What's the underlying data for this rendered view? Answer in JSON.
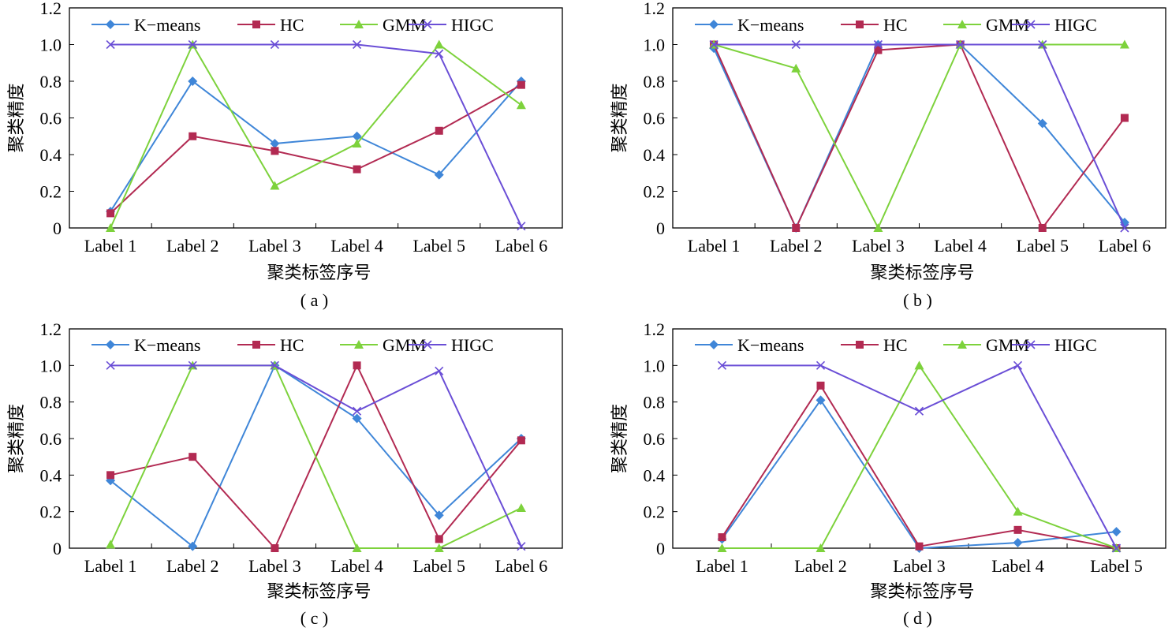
{
  "chart_data": [
    {
      "id": "a",
      "type": "line",
      "caption": "( a )",
      "xlabel": "聚类标签序号",
      "ylabel": "聚类精度",
      "categories": [
        "Label 1",
        "Label 2",
        "Label 3",
        "Label 4",
        "Label 5",
        "Label 6"
      ],
      "ylim": [
        0,
        1.2
      ],
      "yticks": [
        "0",
        "0.2",
        "0.4",
        "0.6",
        "0.8",
        "1.0",
        "1.2"
      ],
      "legend": "top",
      "series": [
        {
          "name": "K−means",
          "color": "#3f86d8",
          "marker": "diamond",
          "values": [
            0.09,
            0.8,
            0.46,
            0.5,
            0.29,
            0.8
          ]
        },
        {
          "name": "HC",
          "color": "#b22a52",
          "marker": "square",
          "values": [
            0.08,
            0.5,
            0.42,
            0.32,
            0.53,
            0.78
          ]
        },
        {
          "name": "GMM",
          "color": "#7dd23c",
          "marker": "triangle",
          "values": [
            0.0,
            1.0,
            0.23,
            0.46,
            1.0,
            0.67
          ]
        },
        {
          "name": "HIGC",
          "color": "#6a4ed6",
          "marker": "x",
          "values": [
            1.0,
            1.0,
            1.0,
            1.0,
            0.95,
            0.01
          ]
        }
      ]
    },
    {
      "id": "b",
      "type": "line",
      "caption": "( b )",
      "xlabel": "聚类标签序号",
      "ylabel": "聚类精度",
      "categories": [
        "Label 1",
        "Label 2",
        "Label 3",
        "Label 4",
        "Label 5",
        "Label 6"
      ],
      "ylim": [
        0,
        1.2
      ],
      "yticks": [
        "0",
        "0.2",
        "0.4",
        "0.6",
        "0.8",
        "1.0",
        "1.2"
      ],
      "legend": "top",
      "series": [
        {
          "name": "K−means",
          "color": "#3f86d8",
          "marker": "diamond",
          "values": [
            0.98,
            0.0,
            1.0,
            1.0,
            0.57,
            0.03
          ]
        },
        {
          "name": "HC",
          "color": "#b22a52",
          "marker": "square",
          "values": [
            1.0,
            0.0,
            0.97,
            1.0,
            0.0,
            0.6
          ]
        },
        {
          "name": "GMM",
          "color": "#7dd23c",
          "marker": "triangle",
          "values": [
            1.0,
            0.87,
            0.0,
            1.0,
            1.0,
            1.0
          ]
        },
        {
          "name": "HIGC",
          "color": "#6a4ed6",
          "marker": "x",
          "values": [
            1.0,
            1.0,
            1.0,
            1.0,
            1.0,
            0.0
          ]
        }
      ]
    },
    {
      "id": "c",
      "type": "line",
      "caption": "( c )",
      "xlabel": "聚类标签序号",
      "ylabel": "聚类精度",
      "categories": [
        "Label 1",
        "Label 2",
        "Label 3",
        "Label 4",
        "Label 5",
        "Label 6"
      ],
      "ylim": [
        0,
        1.2
      ],
      "yticks": [
        "0",
        "0.2",
        "0.4",
        "0.6",
        "0.8",
        "1.0",
        "1.2"
      ],
      "legend": "top",
      "series": [
        {
          "name": "K−means",
          "color": "#3f86d8",
          "marker": "diamond",
          "values": [
            0.37,
            0.01,
            1.0,
            0.71,
            0.18,
            0.6
          ]
        },
        {
          "name": "HC",
          "color": "#b22a52",
          "marker": "square",
          "values": [
            0.4,
            0.5,
            0.0,
            1.0,
            0.05,
            0.59
          ]
        },
        {
          "name": "GMM",
          "color": "#7dd23c",
          "marker": "triangle",
          "values": [
            0.02,
            1.0,
            1.0,
            0.0,
            0.0,
            0.22
          ]
        },
        {
          "name": "HIGC",
          "color": "#6a4ed6",
          "marker": "x",
          "values": [
            1.0,
            1.0,
            1.0,
            0.75,
            0.97,
            0.01
          ]
        }
      ]
    },
    {
      "id": "d",
      "type": "line",
      "caption": "( d )",
      "xlabel": "聚类标签序号",
      "ylabel": "聚类精度",
      "categories": [
        "Label 1",
        "Label 2",
        "Label 3",
        "Label 4",
        "Label 5"
      ],
      "ylim": [
        0,
        1.2
      ],
      "yticks": [
        "0",
        "0.2",
        "0.4",
        "0.6",
        "0.8",
        "1.0",
        "1.2"
      ],
      "legend": "top",
      "series": [
        {
          "name": "K−means",
          "color": "#3f86d8",
          "marker": "diamond",
          "values": [
            0.05,
            0.81,
            0.0,
            0.03,
            0.09
          ]
        },
        {
          "name": "HC",
          "color": "#b22a52",
          "marker": "square",
          "values": [
            0.06,
            0.89,
            0.01,
            0.1,
            0.0
          ]
        },
        {
          "name": "GMM",
          "color": "#7dd23c",
          "marker": "triangle",
          "values": [
            0.0,
            0.0,
            1.0,
            0.2,
            0.0
          ]
        },
        {
          "name": "HIGC",
          "color": "#6a4ed6",
          "marker": "x",
          "values": [
            1.0,
            1.0,
            0.75,
            1.0,
            0.0
          ]
        }
      ]
    }
  ]
}
